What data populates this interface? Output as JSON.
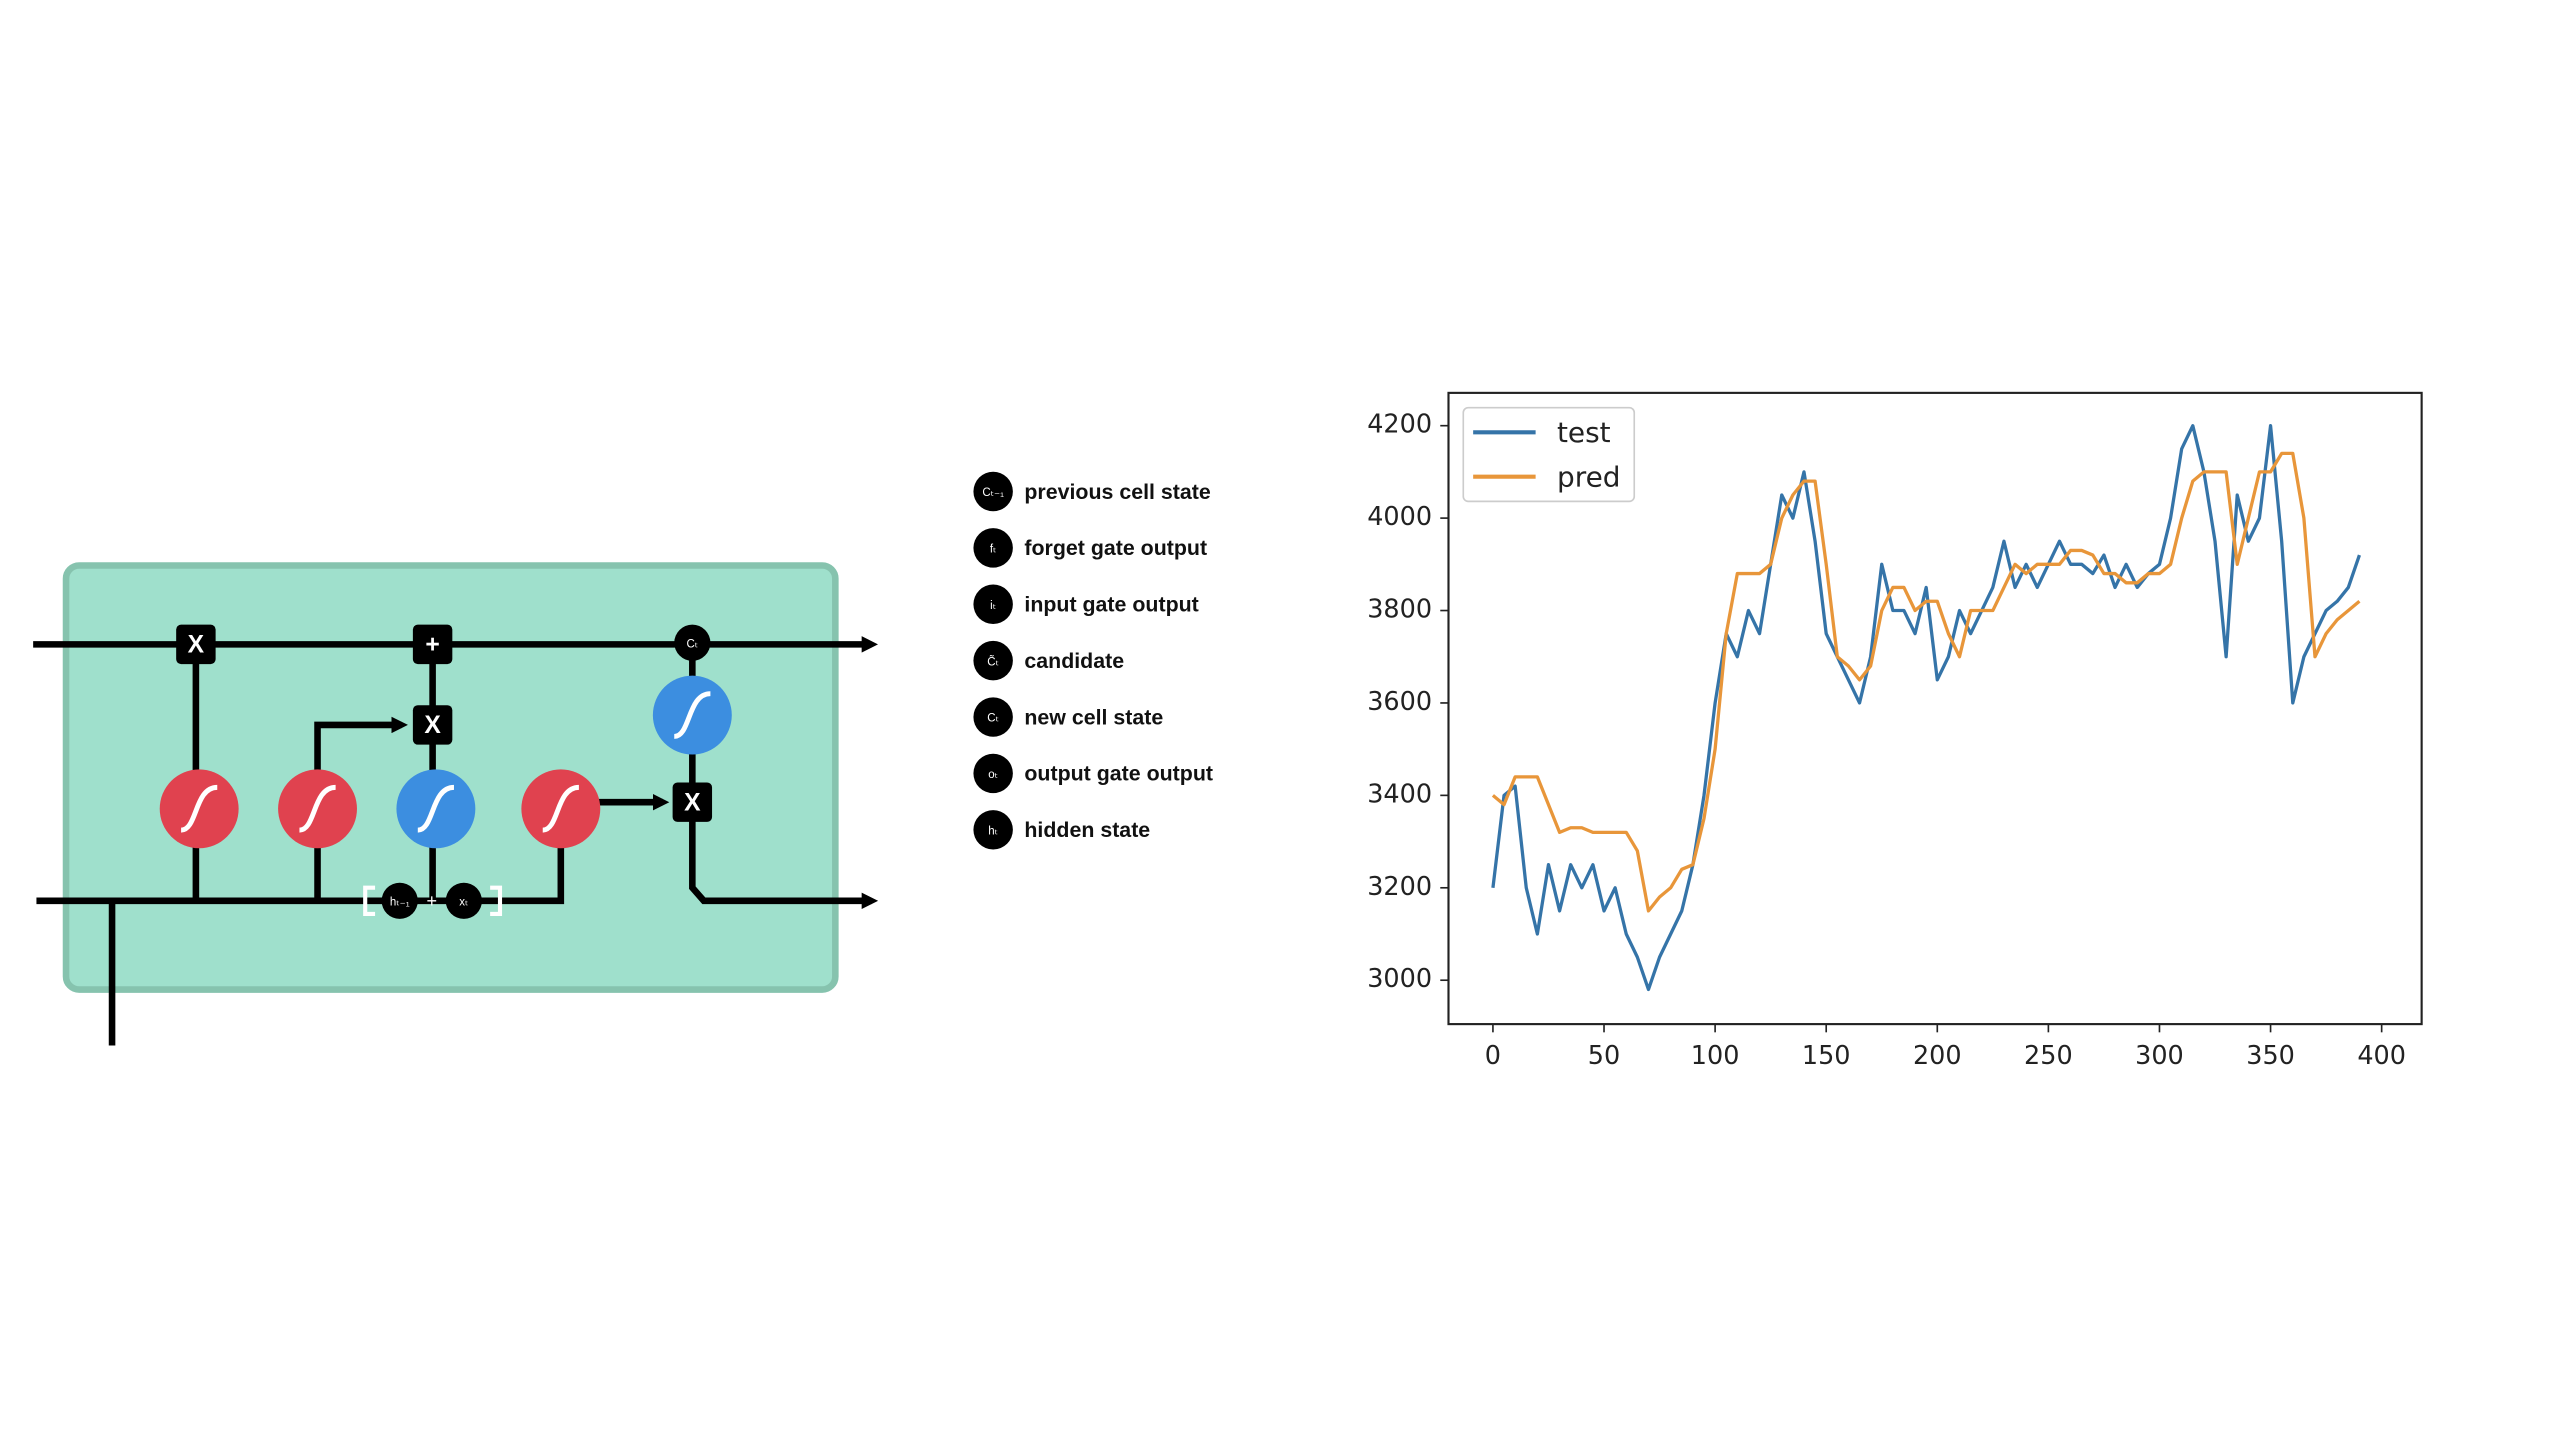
{
  "diagram": {
    "ops": [
      "X",
      "+",
      "X",
      "X"
    ],
    "state_symbol": "Cₜ",
    "inputs": [
      "hₜ₋₁",
      "+",
      "xₜ"
    ]
  },
  "legend": [
    {
      "symbol": "Cₜ₋₁",
      "label": "previous cell state"
    },
    {
      "symbol": "fₜ",
      "label": "forget gate output"
    },
    {
      "symbol": "iₜ",
      "label": "input gate output"
    },
    {
      "symbol": "C̃ₜ",
      "label": "candidate"
    },
    {
      "symbol": "Cₜ",
      "label": "new cell state"
    },
    {
      "symbol": "oₜ",
      "label": "output gate output"
    },
    {
      "symbol": "hₜ",
      "label": "hidden state"
    }
  ],
  "chart_data": {
    "type": "line",
    "x": [
      0,
      5,
      10,
      15,
      20,
      25,
      30,
      35,
      40,
      45,
      50,
      55,
      60,
      65,
      70,
      75,
      80,
      85,
      90,
      95,
      100,
      105,
      110,
      115,
      120,
      125,
      130,
      135,
      140,
      145,
      150,
      155,
      160,
      165,
      170,
      175,
      180,
      185,
      190,
      195,
      200,
      205,
      210,
      215,
      220,
      225,
      230,
      235,
      240,
      245,
      250,
      255,
      260,
      265,
      270,
      275,
      280,
      285,
      290,
      295,
      300,
      305,
      310,
      315,
      320,
      325,
      330,
      335,
      340,
      345,
      350,
      355,
      360,
      365,
      370,
      375,
      380,
      385,
      390
    ],
    "series": [
      {
        "name": "test",
        "color": "#3574a8",
        "values": [
          3200,
          3400,
          3420,
          3200,
          3100,
          3250,
          3150,
          3250,
          3200,
          3250,
          3150,
          3200,
          3100,
          3050,
          2980,
          3050,
          3100,
          3150,
          3250,
          3400,
          3600,
          3750,
          3700,
          3800,
          3750,
          3900,
          4050,
          4000,
          4100,
          3950,
          3750,
          3700,
          3650,
          3600,
          3700,
          3900,
          3800,
          3800,
          3750,
          3850,
          3650,
          3700,
          3800,
          3750,
          3800,
          3850,
          3950,
          3850,
          3900,
          3850,
          3900,
          3950,
          3900,
          3900,
          3880,
          3920,
          3850,
          3900,
          3850,
          3880,
          3900,
          4000,
          4150,
          4200,
          4100,
          3950,
          3700,
          4050,
          3950,
          4000,
          4200,
          3950,
          3600,
          3700,
          3750,
          3800,
          3820,
          3850,
          3920
        ]
      },
      {
        "name": "pred",
        "color": "#e8963a",
        "values": [
          3400,
          3380,
          3440,
          3440,
          3440,
          3380,
          3320,
          3330,
          3330,
          3320,
          3320,
          3320,
          3320,
          3280,
          3150,
          3180,
          3200,
          3240,
          3250,
          3350,
          3500,
          3750,
          3880,
          3880,
          3880,
          3900,
          4000,
          4050,
          4080,
          4080,
          3900,
          3700,
          3680,
          3650,
          3680,
          3800,
          3850,
          3850,
          3800,
          3820,
          3820,
          3750,
          3700,
          3800,
          3800,
          3800,
          3850,
          3900,
          3880,
          3900,
          3900,
          3900,
          3930,
          3930,
          3920,
          3880,
          3880,
          3860,
          3860,
          3880,
          3880,
          3900,
          4000,
          4080,
          4100,
          4100,
          4100,
          3900,
          4000,
          4100,
          4100,
          4140,
          4140,
          4000,
          3700,
          3750,
          3780,
          3800,
          3820
        ]
      }
    ],
    "xlim": [
      -20,
      418
    ],
    "ylim": [
      2905,
      4271
    ],
    "xticks": [
      0,
      50,
      100,
      150,
      200,
      250,
      300,
      350,
      400
    ],
    "yticks": [
      3000,
      3200,
      3400,
      3600,
      3800,
      4000,
      4200
    ],
    "legend": "upper left"
  }
}
